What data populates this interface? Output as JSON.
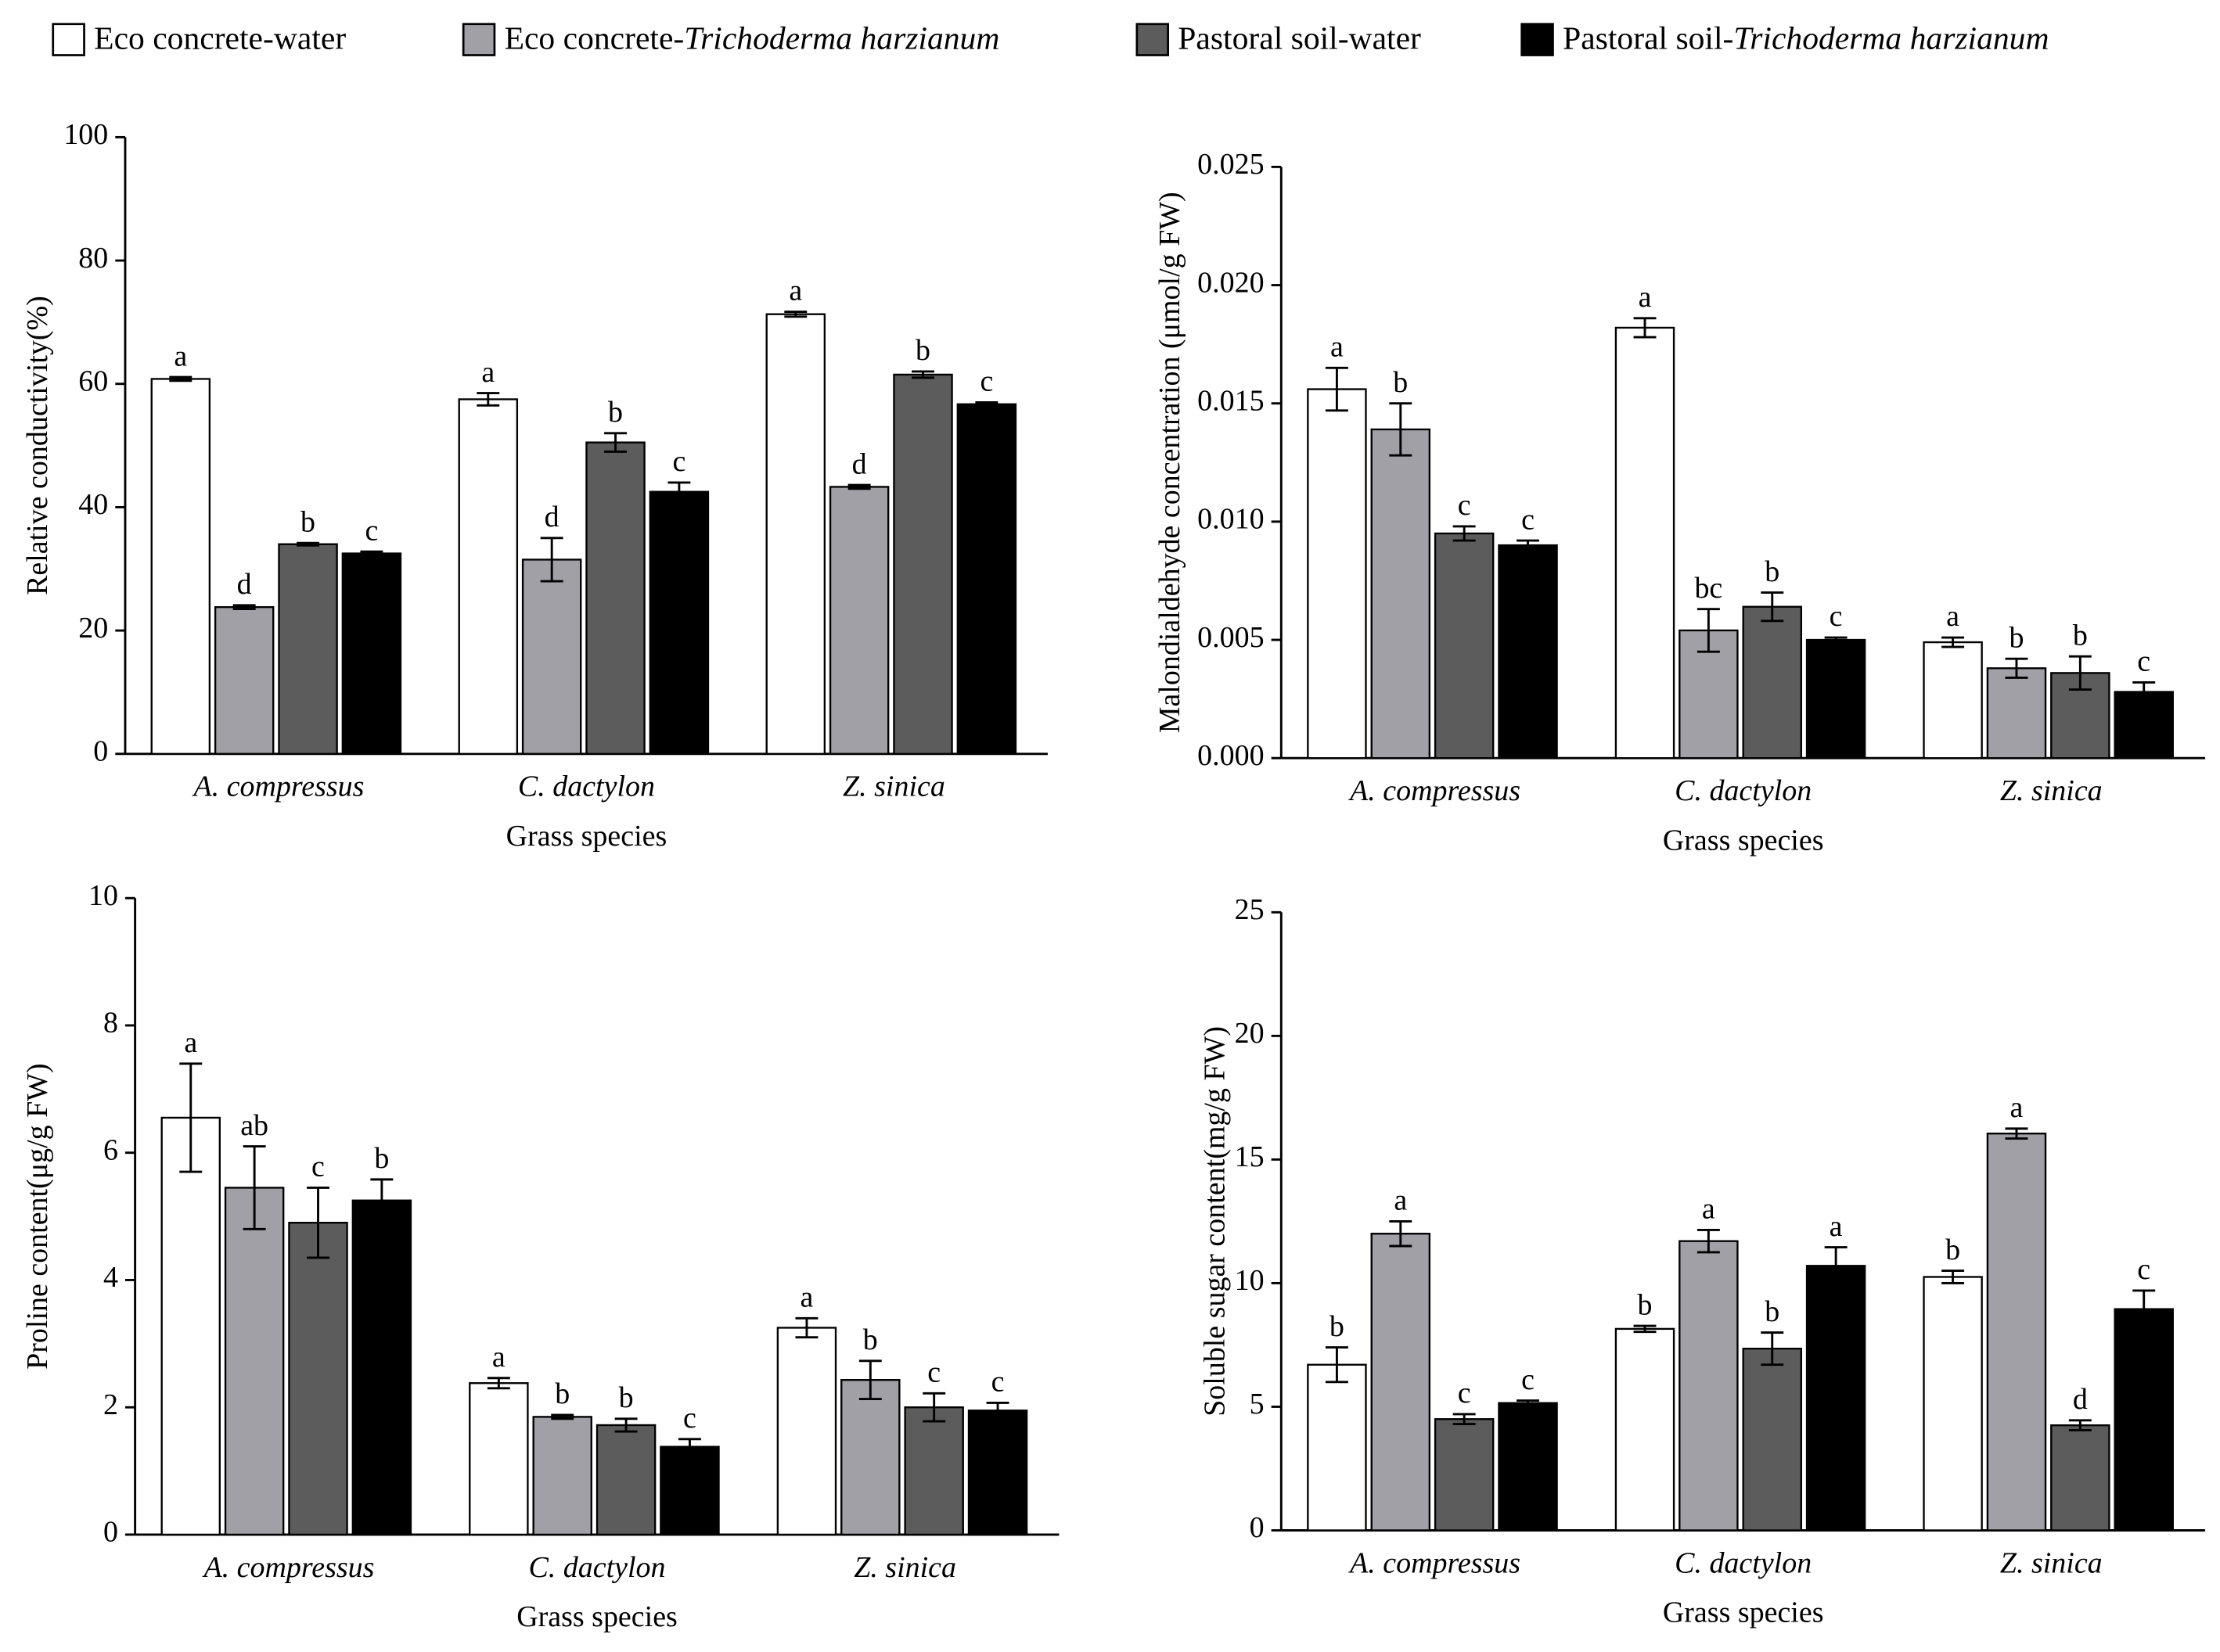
{
  "legend": [
    {
      "name": "Eco concrete-water",
      "color": "#ffffff"
    },
    {
      "name": "Eco concrete-",
      "name_italic": "Trichoderma harzianum",
      "color": "#a0a0a6"
    },
    {
      "name": "Pastoral soil-water",
      "color": "#5c5c5c"
    },
    {
      "name": "Pastoral soil-",
      "name_italic": "Trichoderma harzianum",
      "color": "#000000"
    }
  ],
  "chart_data": [
    {
      "type": "bar",
      "y_label": "Relative conductivity(%)",
      "x_label": "Grass species",
      "categories": [
        "A. compressus",
        "C. dactylon",
        "Z. sinica"
      ],
      "ylim": [
        0,
        100
      ],
      "yticks": [
        0,
        20,
        40,
        60,
        80,
        100
      ],
      "series": [
        {
          "values": [
            60.8,
            57.5,
            71.3
          ],
          "errors": [
            0.3,
            1.0,
            0.4
          ],
          "letters": [
            "a",
            "a",
            "a"
          ]
        },
        {
          "values": [
            23.8,
            31.5,
            43.3
          ],
          "errors": [
            0.3,
            3.5,
            0.3
          ],
          "letters": [
            "d",
            "d",
            "d"
          ]
        },
        {
          "values": [
            34.0,
            50.5,
            61.5
          ],
          "errors": [
            0.2,
            1.5,
            0.5
          ],
          "letters": [
            "b",
            "b",
            "b"
          ]
        },
        {
          "values": [
            32.5,
            42.5,
            56.7
          ],
          "errors": [
            0.3,
            1.5,
            0.3
          ],
          "letters": [
            "c",
            "c",
            "c"
          ]
        }
      ]
    },
    {
      "type": "bar",
      "y_label": "Malondialdehyde concentration (μmol/g FW)",
      "x_label": "Grass species",
      "categories": [
        "A. compressus",
        "C. dactylon",
        "Z. sinica"
      ],
      "ylim": [
        0,
        0.025
      ],
      "yticks": [
        {
          "value": 0,
          "label": "0.000"
        },
        {
          "value": 0.005,
          "label": "0.005"
        },
        {
          "value": 0.01,
          "label": "0.010"
        },
        {
          "value": 0.015,
          "label": "0.015"
        },
        {
          "value": 0.02,
          "label": "0.020"
        },
        {
          "value": 0.025,
          "label": "0.025"
        }
      ],
      "series": [
        {
          "values": [
            0.0156,
            0.0182,
            0.0049
          ],
          "errors": [
            0.0009,
            0.0004,
            0.0002
          ],
          "letters": [
            "a",
            "a",
            "a"
          ]
        },
        {
          "values": [
            0.0139,
            0.0054,
            0.0038
          ],
          "errors": [
            0.0011,
            0.0009,
            0.0004
          ],
          "letters": [
            "b",
            "bc",
            "b"
          ]
        },
        {
          "values": [
            0.0095,
            0.0064,
            0.0036
          ],
          "errors": [
            0.0003,
            0.0006,
            0.0007
          ],
          "letters": [
            "c",
            "b",
            "b"
          ]
        },
        {
          "values": [
            0.009,
            0.005,
            0.0028
          ],
          "errors": [
            0.0002,
            0.0001,
            0.0004
          ],
          "letters": [
            "c",
            "c",
            "c"
          ]
        }
      ]
    },
    {
      "type": "bar",
      "y_label": "Proline content(μg/g FW)",
      "x_label": "Grass species",
      "categories": [
        "A. compressus",
        "C. dactylon",
        "Z. sinica"
      ],
      "ylim": [
        0,
        10
      ],
      "yticks": [
        0,
        2,
        4,
        6,
        8,
        10
      ],
      "series": [
        {
          "values": [
            6.55,
            2.38,
            3.25
          ],
          "errors": [
            0.85,
            0.08,
            0.15
          ],
          "letters": [
            "a",
            "a",
            "a"
          ]
        },
        {
          "values": [
            5.45,
            1.85,
            2.43
          ],
          "errors": [
            0.65,
            0.03,
            0.3
          ],
          "letters": [
            "ab",
            "b",
            "b"
          ]
        },
        {
          "values": [
            4.9,
            1.72,
            2.0
          ],
          "errors": [
            0.55,
            0.1,
            0.22
          ],
          "letters": [
            "c",
            "b",
            "c"
          ]
        },
        {
          "values": [
            5.25,
            1.38,
            1.95
          ],
          "errors": [
            0.33,
            0.12,
            0.12
          ],
          "letters": [
            "b",
            "c",
            "c"
          ]
        }
      ]
    },
    {
      "type": "bar",
      "y_label": "Soluble sugar content(mg/g FW)",
      "x_label": "Grass species",
      "categories": [
        "A. compressus",
        "C. dactylon",
        "Z. sinica"
      ],
      "ylim": [
        0,
        25
      ],
      "yticks": [
        0,
        5,
        10,
        15,
        20,
        25
      ],
      "series": [
        {
          "values": [
            6.7,
            8.15,
            10.25
          ],
          "errors": [
            0.7,
            0.12,
            0.25
          ],
          "letters": [
            "b",
            "b",
            "b"
          ]
        },
        {
          "values": [
            12.0,
            11.7,
            16.05
          ],
          "errors": [
            0.5,
            0.45,
            0.2
          ],
          "letters": [
            "a",
            "a",
            "a"
          ]
        },
        {
          "values": [
            4.5,
            7.35,
            4.25
          ],
          "errors": [
            0.2,
            0.65,
            0.2
          ],
          "letters": [
            "c",
            "b",
            "d"
          ]
        },
        {
          "values": [
            5.15,
            10.7,
            8.95
          ],
          "errors": [
            0.1,
            0.75,
            0.75
          ],
          "letters": [
            "c",
            "a",
            "c"
          ]
        }
      ]
    }
  ]
}
